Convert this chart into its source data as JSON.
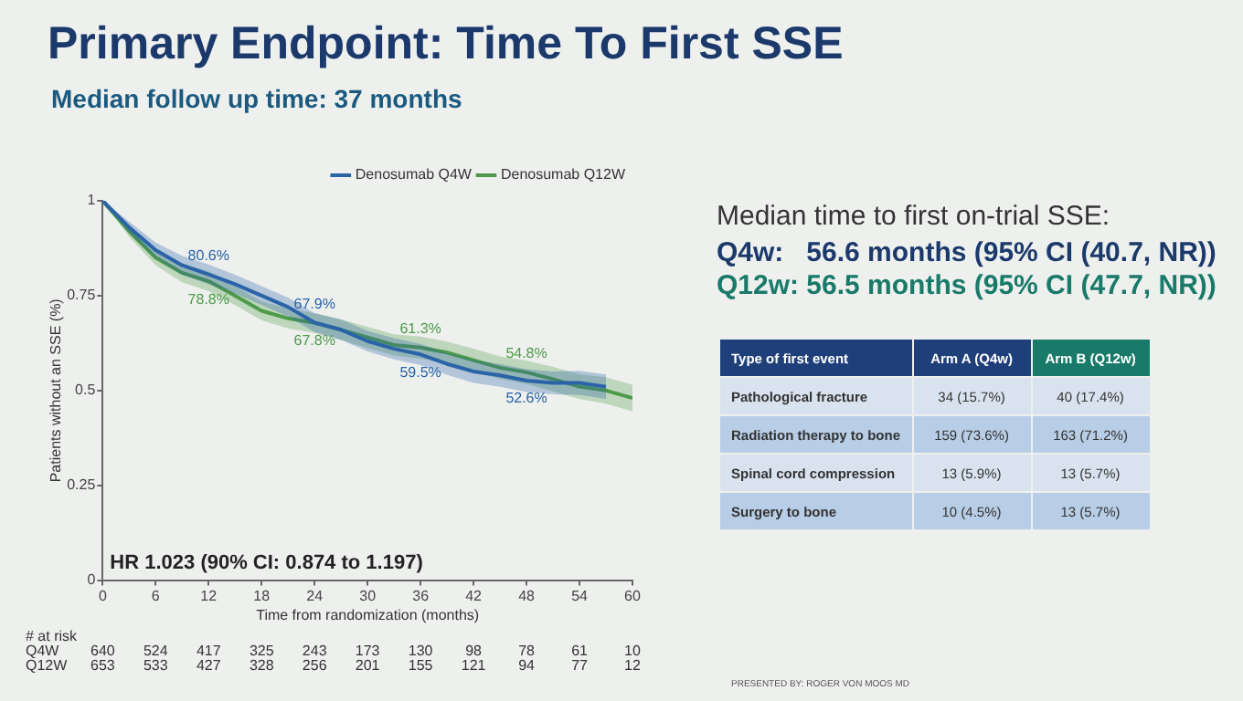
{
  "chart_data": {
    "type": "line",
    "title": "Primary Endpoint: Time To First SSE",
    "subtitle": "Median follow up time: 37 months",
    "xlabel": "Time from randomization (months)",
    "ylabel": "Patients without an SSE (%)",
    "xlim": [
      0,
      60
    ],
    "xticks": [
      0,
      6,
      12,
      18,
      24,
      30,
      36,
      42,
      48,
      54,
      60
    ],
    "ylim": [
      0,
      1
    ],
    "yticks": [
      0,
      0.25,
      0.5,
      0.75,
      1
    ],
    "grid": false,
    "legend": "top right",
    "marker": "none",
    "line_style": "solid",
    "series": [
      {
        "name": "Denosumab Q4W",
        "color": "#2a64a8",
        "x": [
          0,
          3,
          6,
          9,
          12,
          15,
          18,
          21,
          24,
          27,
          30,
          33,
          36,
          39,
          42,
          45,
          48,
          51,
          54,
          57
        ],
        "values": [
          1,
          0.93,
          0.87,
          0.83,
          0.806,
          0.78,
          0.75,
          0.72,
          0.679,
          0.66,
          0.63,
          0.61,
          0.595,
          0.57,
          0.55,
          0.54,
          0.526,
          0.52,
          0.52,
          0.51
        ],
        "lower": [
          1,
          0.915,
          0.85,
          0.805,
          0.78,
          0.755,
          0.725,
          0.695,
          0.654,
          0.633,
          0.603,
          0.582,
          0.567,
          0.541,
          0.52,
          0.51,
          0.496,
          0.49,
          0.488,
          0.478
        ],
        "upper": [
          1,
          0.945,
          0.89,
          0.855,
          0.832,
          0.805,
          0.775,
          0.745,
          0.704,
          0.687,
          0.657,
          0.638,
          0.623,
          0.599,
          0.58,
          0.57,
          0.556,
          0.55,
          0.552,
          0.542
        ],
        "value_labels": [
          null,
          null,
          null,
          null,
          "80.6%",
          null,
          null,
          null,
          "67.9%",
          null,
          null,
          null,
          "59.5%",
          null,
          null,
          null,
          "52.6%",
          null,
          null,
          null
        ]
      },
      {
        "name": "Denosumab Q12W",
        "color": "#4e9a4a",
        "x": [
          0,
          3,
          6,
          9,
          12,
          15,
          18,
          21,
          24,
          27,
          30,
          33,
          36,
          39,
          42,
          45,
          48,
          51,
          54,
          57,
          60
        ],
        "values": [
          1,
          0.92,
          0.85,
          0.81,
          0.788,
          0.75,
          0.71,
          0.69,
          0.678,
          0.66,
          0.64,
          0.62,
          0.613,
          0.6,
          0.58,
          0.56,
          0.548,
          0.53,
          0.51,
          0.5,
          0.48
        ],
        "lower": [
          1,
          0.905,
          0.83,
          0.785,
          0.762,
          0.725,
          0.685,
          0.664,
          0.652,
          0.633,
          0.612,
          0.592,
          0.584,
          0.571,
          0.55,
          0.53,
          0.517,
          0.498,
          0.477,
          0.465,
          0.445
        ],
        "upper": [
          1,
          0.935,
          0.87,
          0.835,
          0.814,
          0.775,
          0.735,
          0.716,
          0.704,
          0.687,
          0.668,
          0.648,
          0.642,
          0.629,
          0.61,
          0.59,
          0.579,
          0.562,
          0.543,
          0.535,
          0.515
        ],
        "value_labels": [
          null,
          null,
          null,
          null,
          "78.8%",
          null,
          null,
          null,
          "67.8%",
          null,
          null,
          null,
          "61.3%",
          null,
          null,
          null,
          "54.8%",
          null,
          null,
          null,
          null
        ]
      }
    ],
    "annotations": [
      "HR 1.023 (90% CI: 0.874 to 1.197)",
      "# at risk",
      "Q4W 640 524 417 325 243 173 130 98 78 61 10",
      "Q12W 653 533 427 328 256 201 155 121 94 77 12",
      "Median time to first on-trial SSE:",
      "Q4w:   56.6 months (95% CI (40.7, NR))",
      "Q12w: 56.5 months (95% CI (47.7, NR))",
      "Type of first event",
      "Arm A (Q4w)",
      "Arm B (Q12w)",
      "Pathological fracture",
      "34 (15.7%)",
      "40 (17.4%)",
      "Radiation therapy to bone",
      "159 (73.6%)",
      "163 (71.2%)",
      "Spinal cord compression",
      "13 (5.9%)",
      "13 (5.7%)",
      "Surgery to bone",
      "10 (4.5%)",
      "13 (5.7%)",
      "PRESENTED BY: ROGER VON MOOS MD"
    ]
  }
}
